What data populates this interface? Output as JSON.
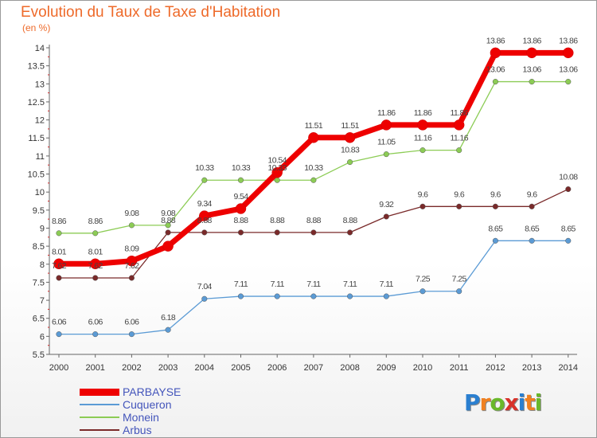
{
  "title": "Evolution du Taux de Taxe d'Habitation",
  "subtitle": "(en %)",
  "colors": {
    "title": "#ee6a2a",
    "legend_text": "#4455bb"
  },
  "logo": {
    "letters": [
      "P",
      "r",
      "o",
      "x",
      "i",
      "t",
      "i"
    ],
    "colors": [
      "#2a7fd0",
      "#f08020",
      "#6ab82a",
      "#d8322a",
      "#2a7fd0",
      "#f08020",
      "#6ab82a"
    ]
  },
  "chart_data": {
    "type": "line",
    "x": [
      "2000",
      "2001",
      "2002",
      "2003",
      "2004",
      "2005",
      "2006",
      "2007",
      "2008",
      "2009",
      "2010",
      "2011",
      "2012",
      "2013",
      "2014"
    ],
    "yticks": [
      "5.5",
      "6",
      "6.5",
      "7",
      "7.5",
      "8",
      "8.5",
      "9",
      "9.5",
      "10",
      "10.5",
      "11",
      "11.5",
      "12",
      "12.5",
      "13",
      "13.5",
      "14"
    ],
    "ylim": [
      5.5,
      14
    ],
    "grid": false,
    "legend_position": "bottom-left",
    "series": [
      {
        "name": "Cuqueron",
        "color": "#5b9bd5",
        "values": [
          6.06,
          6.06,
          6.06,
          6.18,
          7.04,
          7.11,
          7.11,
          7.11,
          7.11,
          7.11,
          7.25,
          7.25,
          8.65,
          8.65,
          8.65
        ],
        "labels": [
          "6.06",
          "6.06",
          "6.06",
          "6.18",
          "7.04",
          "7.11",
          "7.11",
          "7.11",
          "7.11",
          "7.11",
          "7.25",
          "7.25",
          "8.65",
          "8.65",
          "8.65"
        ]
      },
      {
        "name": "Monein",
        "color": "#8ccc55",
        "values": [
          8.86,
          8.86,
          9.08,
          9.08,
          10.33,
          10.33,
          10.33,
          10.33,
          10.83,
          11.05,
          11.16,
          11.16,
          13.06,
          13.06,
          13.06
        ],
        "labels": [
          "8.86",
          "8.86",
          "9.08",
          "9.08",
          "10.33",
          "10.33",
          "10.33",
          "10.33",
          "10.83",
          "11.05",
          "11.16",
          "11.16",
          "13.06",
          "13.06",
          "13.06"
        ]
      },
      {
        "name": "Arbus",
        "color": "#7a2a2a",
        "values": [
          7.62,
          7.62,
          7.62,
          8.88,
          8.88,
          8.88,
          8.88,
          8.88,
          8.88,
          9.32,
          9.6,
          9.6,
          9.6,
          9.6,
          10.08
        ],
        "labels": [
          "7.62",
          "7.62",
          "7.62",
          "8.88",
          "8.88",
          "8.88",
          "8.88",
          "8.88",
          "8.88",
          "9.32",
          "9.6",
          "9.6",
          "9.6",
          "9.6",
          "10.08"
        ]
      },
      {
        "name": "PARBAYSE",
        "color": "#ee0000",
        "values": [
          8.01,
          8.01,
          8.09,
          8.5,
          9.34,
          9.54,
          10.54,
          11.51,
          11.51,
          11.86,
          11.86,
          11.86,
          13.86,
          13.86,
          13.86
        ],
        "labels": [
          "8.01",
          "8.01",
          "8.09",
          "",
          "9.34",
          "9.54",
          "10.54",
          "11.51",
          "11.51",
          "11.86",
          "11.86",
          "11.86",
          "13.86",
          "13.86",
          "13.86"
        ]
      }
    ]
  }
}
